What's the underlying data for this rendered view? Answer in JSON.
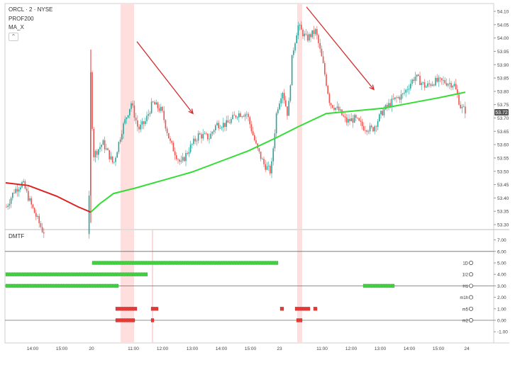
{
  "header": {
    "symbol_line": "ORCL · 2 · NYSE",
    "indicator_1": "PROF200",
    "indicator_2": "MA_X",
    "collapse_icon": "chevron-up-icon"
  },
  "price_pane": {
    "y_ticks": [
      "54.10",
      "54.05",
      "54.00",
      "53.95",
      "53.90",
      "53.85",
      "53.80",
      "53.75",
      "53.70",
      "53.65",
      "53.60",
      "53.55",
      "53.50",
      "53.45",
      "53.40",
      "53.35",
      "53.30"
    ],
    "last_price_badge": "53.72",
    "badge_color": "#555555"
  },
  "dmtf_pane": {
    "title": "DMTF",
    "y_ticks": [
      "7.00",
      "6.00",
      "5.00",
      "4.00",
      "3.00",
      "2.00",
      "1.00",
      "0.00",
      "-1.00"
    ],
    "row_labels": [
      "1D",
      "1I2",
      "H1",
      "m1h",
      "m5",
      "m2"
    ]
  },
  "x_axis": {
    "ticks": [
      "14:00",
      "15:00",
      "20",
      "11:00",
      "12:00",
      "13:00",
      "14:00",
      "15:00",
      "23",
      "11:00",
      "12:00",
      "13:00",
      "14:00",
      "15:00",
      "24"
    ]
  },
  "colors": {
    "up": "#26a69a",
    "down": "#ef5350",
    "ma": "#33dd33",
    "ma_red": "#dd2222",
    "arrow": "#d32f2f",
    "highlight": "#ffdede",
    "green_bar": "#3fcf3f",
    "red_bar": "#e53935"
  },
  "chart_data": {
    "type": "candlestick",
    "y_range": [
      53.28,
      54.12
    ],
    "anchor_points": [
      {
        "x": 9,
        "v": 53.36
      },
      {
        "x": 20,
        "v": 53.42
      },
      {
        "x": 32,
        "v": 53.45
      },
      {
        "x": 45,
        "v": 53.36
      },
      {
        "x": 60,
        "v": 53.27
      },
      {
        "x": 80,
        "v": 53.24
      },
      {
        "x": 110,
        "v": 53.24
      },
      {
        "x": 125,
        "v": 53.26
      },
      {
        "x": 128,
        "v": 53.9
      },
      {
        "x": 131,
        "v": 53.55
      },
      {
        "x": 145,
        "v": 53.6
      },
      {
        "x": 160,
        "v": 53.52
      },
      {
        "x": 172,
        "v": 53.65
      },
      {
        "x": 185,
        "v": 53.75
      },
      {
        "x": 195,
        "v": 53.65
      },
      {
        "x": 205,
        "v": 53.68
      },
      {
        "x": 215,
        "v": 53.75
      },
      {
        "x": 228,
        "v": 53.72
      },
      {
        "x": 240,
        "v": 53.6
      },
      {
        "x": 255,
        "v": 53.52
      },
      {
        "x": 265,
        "v": 53.57
      },
      {
        "x": 280,
        "v": 53.63
      },
      {
        "x": 295,
        "v": 53.62
      },
      {
        "x": 305,
        "v": 53.67
      },
      {
        "x": 320,
        "v": 53.67
      },
      {
        "x": 335,
        "v": 53.71
      },
      {
        "x": 348,
        "v": 53.71
      },
      {
        "x": 362,
        "v": 53.58
      },
      {
        "x": 372,
        "v": 53.52
      },
      {
        "x": 382,
        "v": 53.49
      },
      {
        "x": 390,
        "v": 53.72
      },
      {
        "x": 398,
        "v": 53.8
      },
      {
        "x": 406,
        "v": 53.7
      },
      {
        "x": 412,
        "v": 53.93
      },
      {
        "x": 420,
        "v": 54.04
      },
      {
        "x": 432,
        "v": 53.99
      },
      {
        "x": 445,
        "v": 54.02
      },
      {
        "x": 455,
        "v": 53.9
      },
      {
        "x": 465,
        "v": 53.75
      },
      {
        "x": 478,
        "v": 53.72
      },
      {
        "x": 488,
        "v": 53.68
      },
      {
        "x": 500,
        "v": 53.69
      },
      {
        "x": 512,
        "v": 53.66
      },
      {
        "x": 525,
        "v": 53.65
      },
      {
        "x": 540,
        "v": 53.72
      },
      {
        "x": 555,
        "v": 53.76
      },
      {
        "x": 568,
        "v": 53.78
      },
      {
        "x": 585,
        "v": 53.85
      },
      {
        "x": 600,
        "v": 53.81
      },
      {
        "x": 612,
        "v": 53.83
      },
      {
        "x": 625,
        "v": 53.83
      },
      {
        "x": 640,
        "v": 53.82
      },
      {
        "x": 650,
        "v": 53.73
      },
      {
        "x": 657,
        "v": 53.72
      }
    ],
    "ma_points": [
      {
        "x": 8,
        "v": 53.45
      },
      {
        "x": 40,
        "v": 53.44
      },
      {
        "x": 80,
        "v": 53.4
      },
      {
        "x": 110,
        "v": 53.36
      },
      {
        "x": 128,
        "v": 53.34
      },
      {
        "x": 140,
        "v": 53.37
      },
      {
        "x": 160,
        "v": 53.41
      },
      {
        "x": 190,
        "v": 53.43
      },
      {
        "x": 230,
        "v": 53.46
      },
      {
        "x": 270,
        "v": 53.49
      },
      {
        "x": 310,
        "v": 53.53
      },
      {
        "x": 350,
        "v": 53.57
      },
      {
        "x": 390,
        "v": 53.62
      },
      {
        "x": 420,
        "v": 53.66
      },
      {
        "x": 460,
        "v": 53.71
      },
      {
        "x": 500,
        "v": 53.72
      },
      {
        "x": 540,
        "v": 53.73
      },
      {
        "x": 580,
        "v": 53.75
      },
      {
        "x": 620,
        "v": 53.77
      },
      {
        "x": 656,
        "v": 53.79
      }
    ],
    "trend_arrows": [
      {
        "x1": 193,
        "v1": 53.98,
        "x2": 272,
        "v2": 53.71
      },
      {
        "x1": 432,
        "v1": 54.11,
        "x2": 527,
        "v2": 53.8
      }
    ],
    "highlight_bands": [
      [
        170,
        189
      ],
      [
        419,
        426
      ]
    ],
    "dmtf_rows": [
      {
        "label": "1D",
        "level": 5,
        "segments": [
          [
            130,
            392
          ]
        ],
        "color": "green"
      },
      {
        "label": "1I2",
        "level": 4,
        "segments": [
          [
            8,
            208
          ]
        ],
        "color": "green"
      },
      {
        "label": "H1",
        "level": 3,
        "segments": [
          [
            8,
            167
          ],
          [
            512,
            556
          ]
        ],
        "color": "green"
      },
      {
        "label": "m1h",
        "level": 2,
        "segments": [],
        "color": "green"
      },
      {
        "label": "m5",
        "level": 1,
        "segments": [
          [
            163,
            193
          ],
          [
            213,
            223
          ],
          [
            395,
            400
          ],
          [
            416,
            437
          ],
          [
            442,
            447
          ]
        ],
        "color": "red"
      },
      {
        "label": "m2",
        "level": 0,
        "segments": [
          [
            163,
            190
          ],
          [
            213,
            217
          ],
          [
            418,
            426
          ]
        ],
        "color": "red"
      }
    ]
  }
}
